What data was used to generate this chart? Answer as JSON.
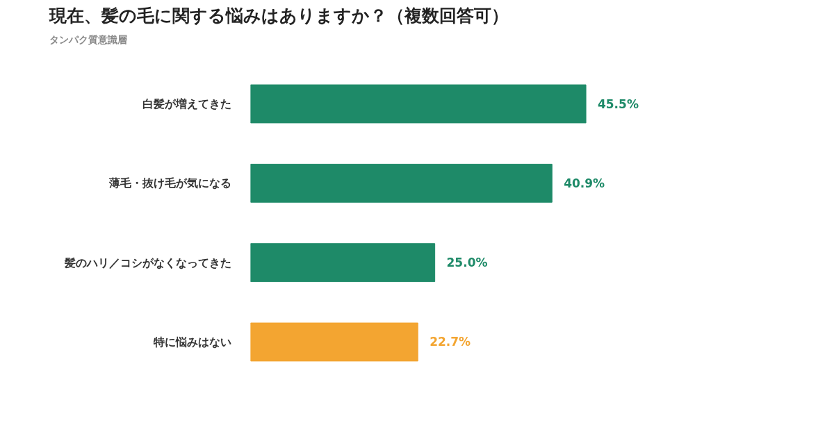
{
  "chart_data": {
    "type": "bar",
    "orientation": "horizontal",
    "title": "現在、髪の毛に関する悩みはありますか？（複数回答可）",
    "subtitle": "タンパク質意識層",
    "categories": [
      "白髪が増えてきた",
      "薄毛・抜け毛が気になる",
      "髪のハリ／コシがなくなってきた",
      "特に悩みはない"
    ],
    "values": [
      45.5,
      40.9,
      25.0,
      22.7
    ],
    "value_labels": [
      "45.5%",
      "40.9%",
      "25.0%",
      "22.7%"
    ],
    "colors": [
      "#1e8a68",
      "#1e8a68",
      "#1e8a68",
      "#f3a531"
    ],
    "grid": false
  }
}
